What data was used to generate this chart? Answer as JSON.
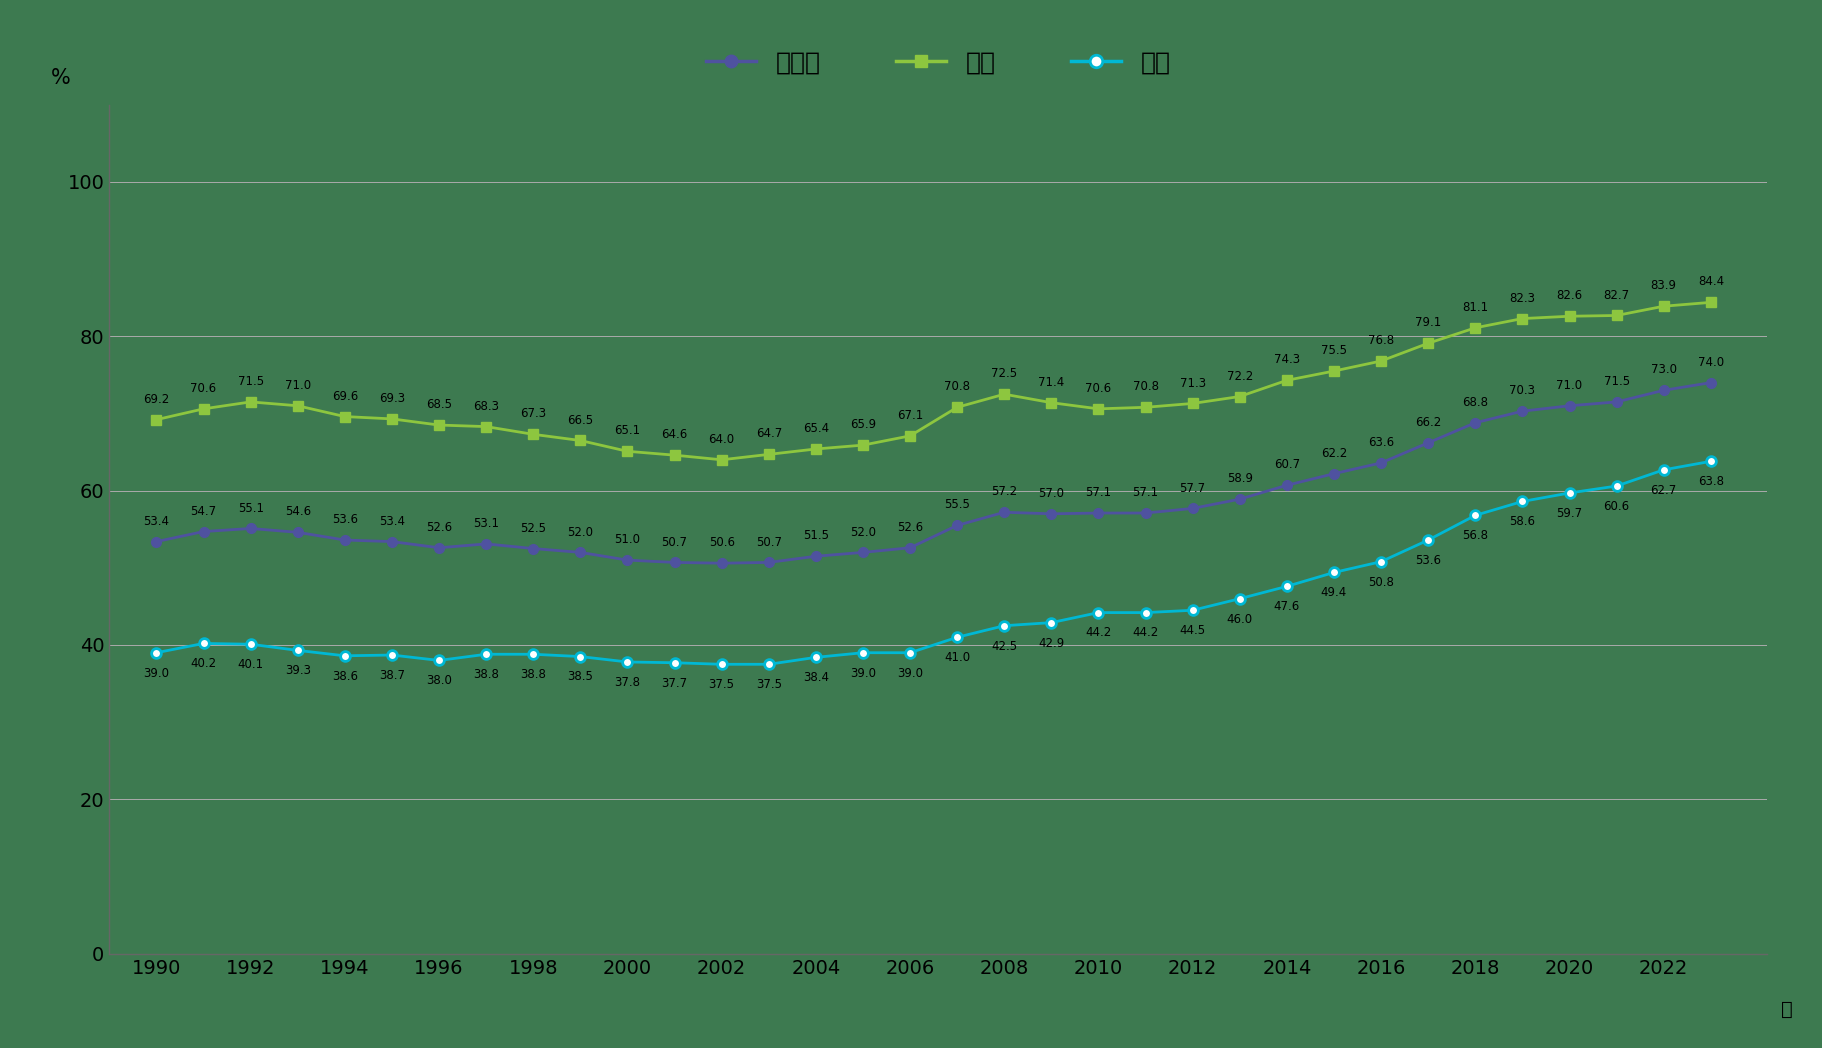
{
  "years": [
    1990,
    1991,
    1992,
    1993,
    1994,
    1995,
    1996,
    1997,
    1998,
    1999,
    2000,
    2001,
    2002,
    2003,
    2004,
    2005,
    2006,
    2007,
    2008,
    2009,
    2010,
    2011,
    2012,
    2013,
    2014,
    2015,
    2016,
    2017,
    2018,
    2019,
    2020,
    2021,
    2022,
    2023
  ],
  "male_female": [
    53.4,
    54.7,
    55.1,
    54.6,
    53.6,
    53.4,
    52.6,
    53.1,
    52.5,
    52.0,
    51.0,
    50.7,
    50.6,
    50.7,
    51.5,
    52.0,
    52.6,
    55.5,
    57.2,
    57.0,
    57.1,
    57.1,
    57.7,
    58.9,
    60.7,
    62.2,
    63.6,
    66.2,
    68.8,
    70.3,
    71.0,
    71.5,
    73.0,
    74.0
  ],
  "male": [
    69.2,
    70.6,
    71.5,
    71.0,
    69.6,
    69.3,
    68.5,
    68.3,
    67.3,
    66.5,
    65.1,
    64.6,
    64.0,
    64.7,
    65.4,
    65.9,
    67.1,
    70.8,
    72.5,
    71.4,
    70.6,
    70.8,
    71.3,
    72.2,
    74.3,
    75.5,
    76.8,
    79.1,
    81.1,
    82.3,
    82.6,
    82.7,
    83.9,
    84.4
  ],
  "female": [
    39.0,
    40.2,
    40.1,
    39.3,
    38.6,
    38.7,
    38.0,
    38.8,
    38.8,
    38.5,
    37.8,
    37.7,
    37.5,
    37.5,
    38.4,
    39.0,
    39.0,
    41.0,
    42.5,
    42.9,
    44.2,
    44.2,
    44.5,
    46.0,
    47.6,
    49.4,
    50.8,
    53.6,
    56.8,
    58.6,
    59.7,
    60.6,
    62.7,
    63.8
  ],
  "male_female_color": "#4f52a0",
  "male_color": "#8dc63f",
  "female_color": "#00b8d4",
  "background_color": "#3d7a50",
  "grid_color": "#aaaaaa",
  "text_color": "#000000",
  "label_color": "#000000",
  "tick_color": "#000000",
  "legend_labels": [
    "男女計",
    "男性",
    "女性"
  ],
  "ylabel": "%",
  "xlabel": "年",
  "yticks": [
    0,
    20,
    40,
    60,
    80,
    100
  ],
  "spine_color": "#666666"
}
